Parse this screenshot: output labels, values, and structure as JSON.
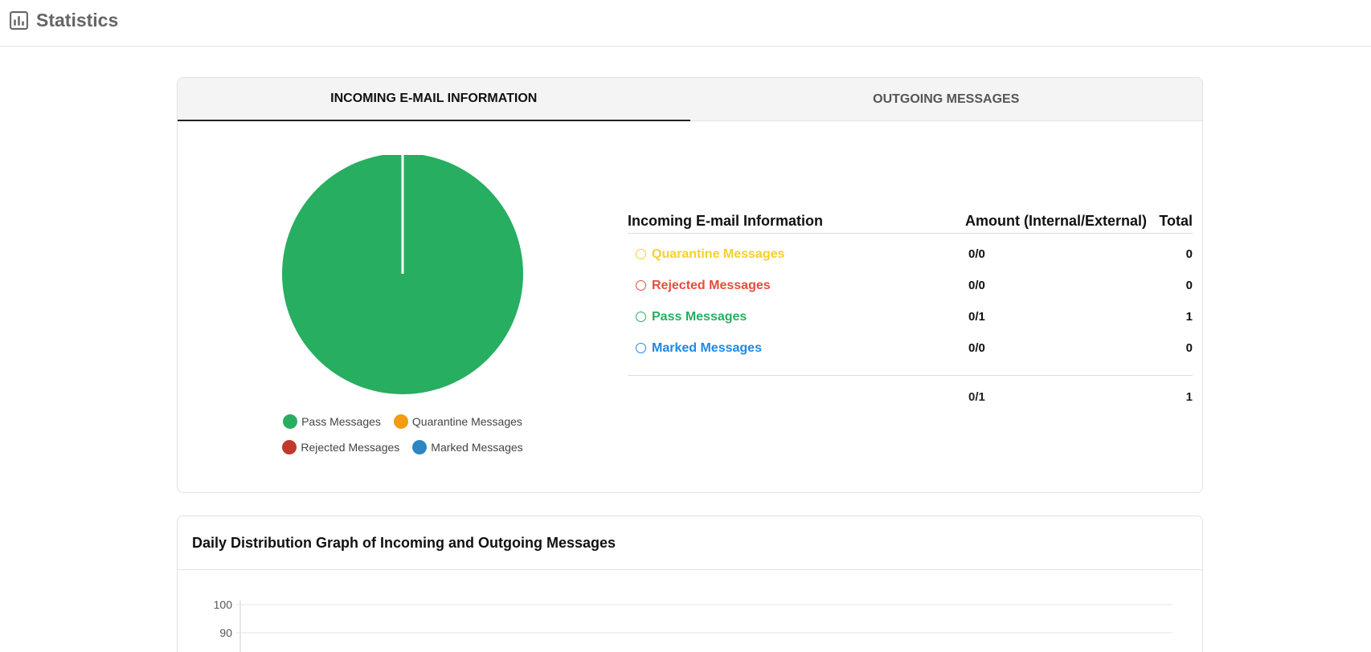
{
  "header": {
    "title": "Statistics",
    "icon": "bar-chart-icon"
  },
  "tabs": [
    {
      "label": "INCOMING E-MAIL INFORMATION",
      "active": true
    },
    {
      "label": "OUTGOING MESSAGES",
      "active": false
    }
  ],
  "legend": [
    {
      "label": "Pass Messages",
      "color": "#27ae60"
    },
    {
      "label": "Quarantine Messages",
      "color": "#f39c12"
    },
    {
      "label": "Rejected Messages",
      "color": "#c0392b"
    },
    {
      "label": "Marked Messages",
      "color": "#2e86c1"
    }
  ],
  "table": {
    "headers": {
      "name": "Incoming E-mail Information",
      "amount": "Amount (Internal/External)",
      "total": "Total"
    },
    "rows": [
      {
        "label": "Quarantine Messages",
        "amount": "0/0",
        "total": "0",
        "color": "#f7d02a"
      },
      {
        "label": "Rejected Messages",
        "amount": "0/0",
        "total": "0",
        "color": "#e74c3c"
      },
      {
        "label": "Pass Messages",
        "amount": "0/1",
        "total": "1",
        "color": "#27ae60"
      },
      {
        "label": "Marked Messages",
        "amount": "0/0",
        "total": "0",
        "color": "#1e88e5"
      }
    ],
    "summary": {
      "amount": "0/1",
      "total": "1"
    }
  },
  "graph": {
    "title": "Daily Distribution Graph of Incoming and Outgoing Messages"
  },
  "chart_data": [
    {
      "type": "pie",
      "labels": [
        "Pass Messages",
        "Quarantine Messages",
        "Rejected Messages",
        "Marked Messages"
      ],
      "values": [
        1,
        0,
        0,
        0
      ],
      "colors": [
        "#27ae60",
        "#f39c12",
        "#c0392b",
        "#2e86c1"
      ],
      "legend": "bottom"
    },
    {
      "type": "line",
      "title": "Daily Distribution Graph of Incoming and Outgoing Messages",
      "yticks": [
        100,
        90
      ],
      "grid": true
    }
  ]
}
